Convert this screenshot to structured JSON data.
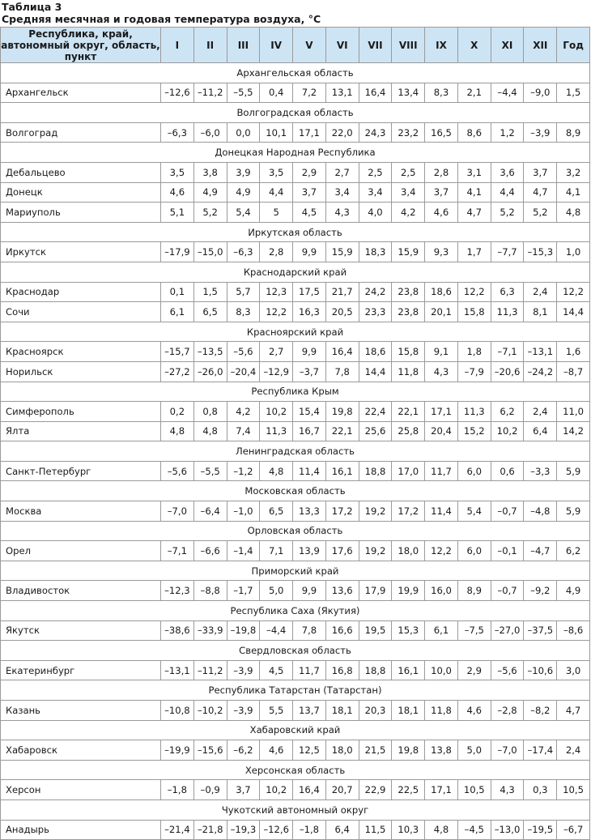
{
  "caption": {
    "label": "Таблица 3",
    "title": "Средняя месячная и годовая температура воздуха, °C"
  },
  "header": [
    "Республика, край, автономный округ, область, пункт",
    "I",
    "II",
    "III",
    "IV",
    "V",
    "VI",
    "VII",
    "VIII",
    "IX",
    "X",
    "XI",
    "XII",
    "Год"
  ],
  "groups": [
    {
      "region": "Архангельская область",
      "rows": [
        {
          "name": "Архангельск",
          "values": [
            "–12,6",
            "–11,2",
            "–5,5",
            "0,4",
            "7,2",
            "13,1",
            "16,4",
            "13,4",
            "8,3",
            "2,1",
            "–4,4",
            "–9,0",
            "1,5"
          ]
        }
      ]
    },
    {
      "region": "Волгоградская область",
      "rows": [
        {
          "name": "Волгоград",
          "values": [
            "–6,3",
            "–6,0",
            "0,0",
            "10,1",
            "17,1",
            "22,0",
            "24,3",
            "23,2",
            "16,5",
            "8,6",
            "1,2",
            "–3,9",
            "8,9"
          ]
        }
      ]
    },
    {
      "region": "Донецкая Народная Республика",
      "rows": [
        {
          "name": "Дебальцево",
          "values": [
            "3,5",
            "3,8",
            "3,9",
            "3,5",
            "2,9",
            "2,7",
            "2,5",
            "2,5",
            "2,8",
            "3,1",
            "3,6",
            "3,7",
            "3,2"
          ]
        },
        {
          "name": "Донецк",
          "values": [
            "4,6",
            "4,9",
            "4,9",
            "4,4",
            "3,7",
            "3,4",
            "3,4",
            "3,4",
            "3,7",
            "4,1",
            "4,4",
            "4,7",
            "4,1"
          ]
        },
        {
          "name": "Мариуполь",
          "values": [
            "5,1",
            "5,2",
            "5,4",
            "5",
            "4,5",
            "4,3",
            "4,0",
            "4,2",
            "4,6",
            "4,7",
            "5,2",
            "5,2",
            "4,8"
          ]
        }
      ]
    },
    {
      "region": "Иркутская область",
      "rows": [
        {
          "name": "Иркутск",
          "values": [
            "–17,9",
            "–15,0",
            "–6,3",
            "2,8",
            "9,9",
            "15,9",
            "18,3",
            "15,9",
            "9,3",
            "1,7",
            "–7,7",
            "–15,3",
            "1,0"
          ]
        }
      ]
    },
    {
      "region": "Краснодарский край",
      "rows": [
        {
          "name": "Краснодар",
          "values": [
            "0,1",
            "1,5",
            "5,7",
            "12,3",
            "17,5",
            "21,7",
            "24,2",
            "23,8",
            "18,6",
            "12,2",
            "6,3",
            "2,4",
            "12,2"
          ]
        },
        {
          "name": "Сочи",
          "values": [
            "6,1",
            "6,5",
            "8,3",
            "12,2",
            "16,3",
            "20,5",
            "23,3",
            "23,8",
            "20,1",
            "15,8",
            "11,3",
            "8,1",
            "14,4"
          ]
        }
      ]
    },
    {
      "region": "Красноярский край",
      "rows": [
        {
          "name": "Красноярск",
          "values": [
            "–15,7",
            "–13,5",
            "–5,6",
            "2,7",
            "9,9",
            "16,4",
            "18,6",
            "15,8",
            "9,1",
            "1,8",
            "–7,1",
            "–13,1",
            "1,6"
          ]
        },
        {
          "name": "Норильск",
          "values": [
            "–27,2",
            "–26,0",
            "–20,4",
            "–12,9",
            "–3,7",
            "7,8",
            "14,4",
            "11,8",
            "4,3",
            "–7,9",
            "–20,6",
            "–24,2",
            "–8,7"
          ]
        }
      ]
    },
    {
      "region": "Республика Крым",
      "rows": [
        {
          "name": "Симферополь",
          "values": [
            "0,2",
            "0,8",
            "4,2",
            "10,2",
            "15,4",
            "19,8",
            "22,4",
            "22,1",
            "17,1",
            "11,3",
            "6,2",
            "2,4",
            "11,0"
          ]
        },
        {
          "name": "Ялта",
          "values": [
            "4,8",
            "4,8",
            "7,4",
            "11,3",
            "16,7",
            "22,1",
            "25,6",
            "25,8",
            "20,4",
            "15,2",
            "10,2",
            "6,4",
            "14,2"
          ]
        }
      ]
    },
    {
      "region": "Ленинградская область",
      "rows": [
        {
          "name": "Санкт-Петербург",
          "values": [
            "–5,6",
            "–5,5",
            "–1,2",
            "4,8",
            "11,4",
            "16,1",
            "18,8",
            "17,0",
            "11,7",
            "6,0",
            "0,6",
            "–3,3",
            "5,9"
          ]
        }
      ]
    },
    {
      "region": "Московская область",
      "rows": [
        {
          "name": "Москва",
          "values": [
            "–7,0",
            "–6,4",
            "–1,0",
            "6,5",
            "13,3",
            "17,2",
            "19,2",
            "17,2",
            "11,4",
            "5,4",
            "–0,7",
            "–4,8",
            "5,9"
          ]
        }
      ]
    },
    {
      "region": "Орловская область",
      "rows": [
        {
          "name": "Орел",
          "values": [
            "–7,1",
            "–6,6",
            "–1,4",
            "7,1",
            "13,9",
            "17,6",
            "19,2",
            "18,0",
            "12,2",
            "6,0",
            "–0,1",
            "–4,7",
            "6,2"
          ]
        }
      ]
    },
    {
      "region": "Приморский край",
      "rows": [
        {
          "name": "Владивосток",
          "values": [
            "–12,3",
            "–8,8",
            "–1,7",
            "5,0",
            "9,9",
            "13,6",
            "17,9",
            "19,9",
            "16,0",
            "8,9",
            "–0,7",
            "–9,2",
            "4,9"
          ]
        }
      ]
    },
    {
      "region": "Республика Саха (Якутия)",
      "rows": [
        {
          "name": "Якутск",
          "values": [
            "–38,6",
            "–33,9",
            "–19,8",
            "–4,4",
            "7,8",
            "16,6",
            "19,5",
            "15,3",
            "6,1",
            "–7,5",
            "–27,0",
            "–37,5",
            "–8,6"
          ]
        }
      ]
    },
    {
      "region": "Свердловская область",
      "rows": [
        {
          "name": "Екатеринбург",
          "values": [
            "–13,1",
            "–11,2",
            "–3,9",
            "4,5",
            "11,7",
            "16,8",
            "18,8",
            "16,1",
            "10,0",
            "2,9",
            "–5,6",
            "–10,6",
            "3,0"
          ]
        }
      ]
    },
    {
      "region": "Республика Татарстан (Татарстан)",
      "rows": [
        {
          "name": "Казань",
          "values": [
            "–10,8",
            "–10,2",
            "–3,9",
            "5,5",
            "13,7",
            "18,1",
            "20,3",
            "18,1",
            "11,8",
            "4,6",
            "–2,8",
            "–8,2",
            "4,7"
          ]
        }
      ]
    },
    {
      "region": "Хабаровский край",
      "rows": [
        {
          "name": "Хабаровск",
          "values": [
            "–19,9",
            "–15,6",
            "–6,2",
            "4,6",
            "12,5",
            "18,0",
            "21,5",
            "19,8",
            "13,8",
            "5,0",
            "–7,0",
            "–17,4",
            "2,4"
          ]
        }
      ]
    },
    {
      "region": "Херсонская область",
      "rows": [
        {
          "name": "Херсон",
          "values": [
            "–1,8",
            "–0,9",
            "3,7",
            "10,2",
            "16,4",
            "20,7",
            "22,9",
            "22,5",
            "17,1",
            "10,5",
            "4,3",
            "0,3",
            "10,5"
          ]
        }
      ]
    },
    {
      "region": "Чукотский автономный округ",
      "rows": [
        {
          "name": "Анадырь",
          "values": [
            "–21,4",
            "–21,8",
            "–19,3",
            "–12,6",
            "–1,8",
            "6,4",
            "11,5",
            "10,3",
            "4,8",
            "–4,5",
            "–13,0",
            "–19,5",
            "–6,7"
          ]
        }
      ]
    }
  ]
}
